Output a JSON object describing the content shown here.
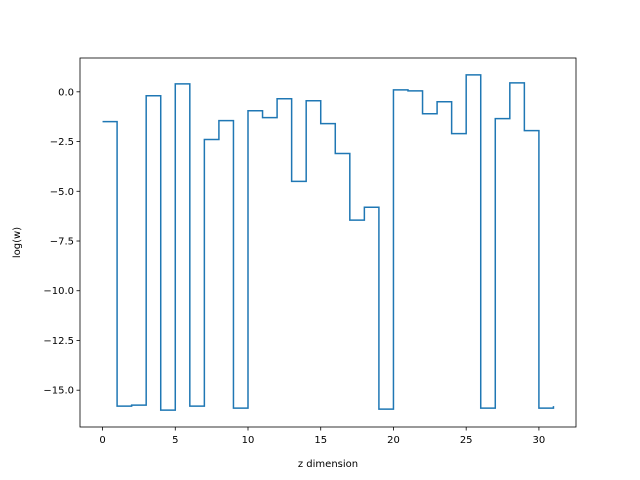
{
  "chart_data": {
    "type": "line",
    "drawstyle": "steps-post",
    "title": "",
    "xlabel": "z dimension",
    "ylabel": "log(w)",
    "xlim": [
      -1.55,
      32.55
    ],
    "ylim": [
      -16.85,
      1.7
    ],
    "xticks": [
      0,
      5,
      10,
      15,
      20,
      25,
      30
    ],
    "xtick_labels": [
      "0",
      "5",
      "10",
      "15",
      "20",
      "25",
      "30"
    ],
    "yticks": [
      0.0,
      -2.5,
      -5.0,
      -7.5,
      -10.0,
      -12.5,
      -15.0
    ],
    "ytick_labels": [
      "0.0",
      "−2.5",
      "−5.0",
      "−7.5",
      "−10.0",
      "−12.5",
      "−15.0"
    ],
    "grid": false,
    "color": "#1f77b4",
    "series": [
      {
        "x": [
          0,
          1,
          2,
          3,
          4,
          5,
          6,
          7,
          8,
          9,
          10,
          11,
          12,
          13,
          14,
          15,
          16,
          17,
          18,
          19,
          20,
          21,
          22,
          23,
          24,
          25,
          26,
          27,
          28,
          29,
          30,
          31
        ],
        "values": [
          -1.5,
          -15.8,
          -15.75,
          -0.2,
          -16.0,
          0.4,
          -15.8,
          -2.4,
          -1.45,
          -15.9,
          -0.95,
          -1.3,
          -0.35,
          -4.5,
          -0.45,
          -1.6,
          -3.1,
          -6.45,
          -5.8,
          -15.95,
          0.1,
          0.05,
          -1.1,
          -0.5,
          -2.1,
          0.85,
          -15.9,
          -1.35,
          0.45,
          -1.95,
          -15.9,
          -15.8
        ]
      }
    ]
  }
}
